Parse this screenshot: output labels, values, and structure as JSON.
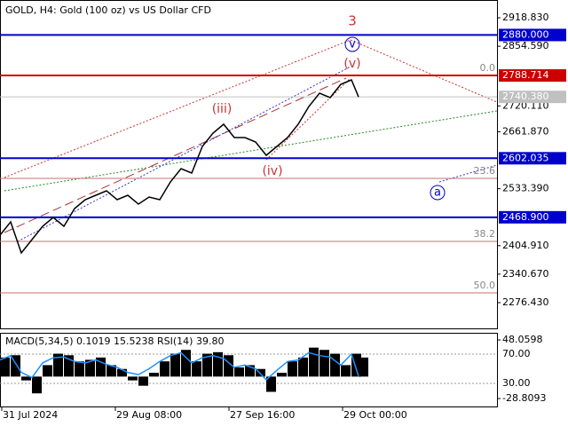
{
  "chart_data": [
    {
      "type": "line",
      "title": "GOLD, H4:  Gold (100 oz) vs US Dollar CFD",
      "color": "#000000",
      "x": [
        0,
        3,
        6,
        9,
        12,
        15,
        18,
        21,
        24,
        27,
        30,
        33,
        36,
        39,
        42,
        45,
        48,
        51,
        54,
        57,
        60,
        63,
        66,
        69,
        72,
        75,
        78,
        81,
        84,
        87,
        90,
        93,
        96,
        99,
        101
      ],
      "values": [
        2428.5,
        2458.5,
        2388.5,
        2418.5,
        2448.5,
        2468.5,
        2448.5,
        2488.5,
        2508.6,
        2518.6,
        2528.6,
        2508.6,
        2518.6,
        2498.5,
        2514.6,
        2508.6,
        2548.6,
        2578.6,
        2568.6,
        2628.6,
        2658.6,
        2678.7,
        2648.6,
        2648.6,
        2638.6,
        2608.6,
        2628.6,
        2648.6,
        2678.7,
        2718.7,
        2748.7,
        2738.7,
        2768.7,
        2778.7,
        2740.38
      ],
      "xlim": [
        0,
        140
      ],
      "xticks": [
        {
          "value": 0.5,
          "label": "31 Jul 2024"
        },
        {
          "value": 32.5,
          "label": "29 Aug 08:00"
        },
        {
          "value": 64.5,
          "label": "27 Sep 16:00"
        },
        {
          "value": 96.5,
          "label": "29 Oct 00:00"
        }
      ],
      "ylim": [
        2218.4,
        2958.9
      ],
      "yticks": [
        {
          "value": 2918.83,
          "label": "2918.830"
        },
        {
          "value": 2854.59,
          "label": "2854.590"
        },
        {
          "value": 2720.11,
          "label": "2720.110"
        },
        {
          "value": 2661.87,
          "label": "2661.870"
        },
        {
          "value": 2533.39,
          "label": "2533.390"
        },
        {
          "value": 2404.91,
          "label": "2404.910"
        },
        {
          "value": 2340.67,
          "label": "2340.670"
        },
        {
          "value": 2276.43,
          "label": "2276.430"
        }
      ],
      "levels": [
        {
          "value": 2880,
          "label": "2880.000",
          "color": "#0000cc"
        },
        {
          "value": 2788.714,
          "label": "2788.714",
          "color": "#cc0000"
        },
        {
          "value": 2740.38,
          "label": "2740.380",
          "color": "#c0c0c0"
        },
        {
          "value": 2602.035,
          "label": "2602.035",
          "color": "#0000cc"
        },
        {
          "value": 2468.9,
          "label": "2468.900",
          "color": "#0000cc"
        }
      ],
      "fib_levels": [
        {
          "value": 2788.714,
          "label": "0.0"
        },
        {
          "value": 2556.6,
          "label": "23.6"
        },
        {
          "value": 2414.5,
          "label": "38.2"
        },
        {
          "value": 2298.5,
          "label": "50.0"
        }
      ],
      "fib_color": "#c87070",
      "annotations": [
        "3",
        "(v)",
        "v",
        "(iii)",
        "(iv)",
        "a"
      ]
    },
    {
      "type": "bar",
      "title": "MACD(5,34,5) 0.1019 15.5238 RSI(14) 39.80",
      "color": "#000000",
      "x": [
        0,
        3,
        6,
        9,
        12,
        15,
        18,
        21,
        24,
        27,
        30,
        33,
        36,
        39,
        42,
        45,
        48,
        51,
        54,
        57,
        60,
        63,
        66,
        69,
        72,
        75,
        78,
        81,
        84,
        87,
        90,
        93,
        96,
        99,
        101
      ],
      "values": [
        25,
        28,
        -5,
        -22,
        15,
        30,
        28,
        20,
        22,
        25,
        15,
        10,
        -5,
        -12,
        5,
        20,
        30,
        35,
        20,
        30,
        32,
        28,
        12,
        15,
        10,
        -20,
        5,
        20,
        25,
        38,
        35,
        30,
        15,
        30,
        25
      ],
      "ylim": [
        -39.2,
        57.4
      ],
      "yticks": [
        {
          "value": 48.0598,
          "label": "48.0598"
        },
        {
          "value": -28.8093,
          "label": "-28.8093"
        }
      ],
      "series": [
        {
          "axis": "y2",
          "color": "#1e90ff",
          "values": [
            62,
            68,
            45,
            38,
            58,
            65,
            66,
            60,
            58,
            62,
            56,
            52,
            45,
            42,
            50,
            60,
            68,
            72,
            58,
            65,
            68,
            64,
            52,
            55,
            50,
            35,
            48,
            60,
            62,
            72,
            68,
            66,
            55,
            70,
            40
          ]
        }
      ],
      "y2lim": [
        -1.5,
        99.1
      ],
      "y2ticks": [
        {
          "value": 70,
          "label": "70.00"
        },
        {
          "value": 30,
          "label": "30.00"
        }
      ]
    }
  ]
}
